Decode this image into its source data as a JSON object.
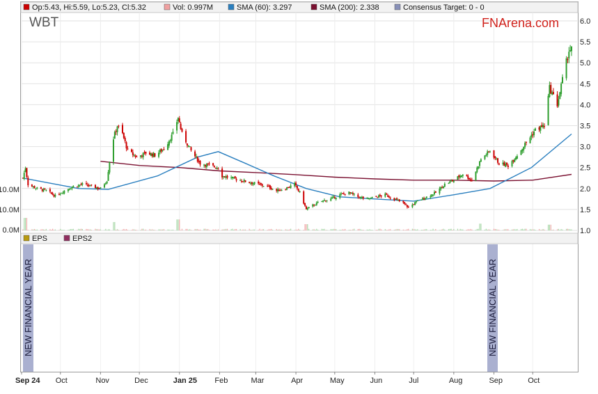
{
  "ticker": "WBT",
  "brand": "FNArena.com",
  "legend": [
    {
      "label": "Op:5.43, Hi:5.59, Lo:5.23, Cl:5.32",
      "color": "#cc0000"
    },
    {
      "label": "Vol: 0.997M",
      "color": "#f0a0a0"
    },
    {
      "label": "SMA (60): 3.297",
      "color": "#2a7fbf"
    },
    {
      "label": "SMA (200): 2.338",
      "color": "#7a1030"
    },
    {
      "label": "Consensus Target: 0 - 0",
      "color": "#8890b8"
    }
  ],
  "lower_legend": [
    {
      "label": "EPS",
      "color": "#b89a10"
    },
    {
      "label": "EPS2",
      "color": "#903060"
    }
  ],
  "y_ticks": [
    "6.0",
    "5.5",
    "5.0",
    "4.5",
    "4.0",
    "3.5",
    "3.0",
    "2.5",
    "2.0",
    "1.5",
    "1.0"
  ],
  "volume_ticks": [
    "10.0M",
    "10.0M",
    "0.0M"
  ],
  "months": [
    "Sep 24",
    "Oct",
    "Nov",
    "Dec",
    "Jan 25",
    "Feb",
    "Mar",
    "Apr",
    "May",
    "Jun",
    "Jul",
    "Aug",
    "Sep",
    "Oct"
  ],
  "financial_year_label": "NEW FINANCIAL YEAR",
  "colors": {
    "up": "#2e9e2e",
    "down": "#cc0000",
    "sma60": "#2a7fbf",
    "sma200": "#7a1030",
    "fy_band": "#aab0d0",
    "grid": "#e2e2e2"
  },
  "chart_data": {
    "type": "candlestick",
    "title": "WBT",
    "ylim": [
      1.0,
      6.0
    ],
    "y_scale": "linear",
    "grid": true,
    "legend_placement": "top",
    "price_points": [
      [
        "2024-09-02",
        2.25
      ],
      [
        "2024-09-04",
        2.5
      ],
      [
        "2024-09-06",
        2.1
      ],
      [
        "2024-09-13",
        2.0
      ],
      [
        "2024-09-20",
        1.95
      ],
      [
        "2024-09-27",
        1.82
      ],
      [
        "2024-10-04",
        1.95
      ],
      [
        "2024-10-11",
        2.05
      ],
      [
        "2024-10-18",
        2.1
      ],
      [
        "2024-10-25",
        2.05
      ],
      [
        "2024-11-01",
        2.0
      ],
      [
        "2024-11-06",
        2.2
      ],
      [
        "2024-11-08",
        2.65
      ],
      [
        "2024-11-11",
        3.2
      ],
      [
        "2024-11-14",
        3.5
      ],
      [
        "2024-11-18",
        3.3
      ],
      [
        "2024-11-22",
        2.9
      ],
      [
        "2024-11-29",
        2.75
      ],
      [
        "2024-12-06",
        2.85
      ],
      [
        "2024-12-13",
        2.8
      ],
      [
        "2024-12-20",
        2.95
      ],
      [
        "2024-12-27",
        3.3
      ],
      [
        "2024-12-31",
        3.7
      ],
      [
        "2025-01-03",
        3.3
      ],
      [
        "2025-01-10",
        2.9
      ],
      [
        "2025-01-17",
        2.6
      ],
      [
        "2025-01-24",
        2.55
      ],
      [
        "2025-01-31",
        2.5
      ],
      [
        "2025-02-03",
        2.3
      ],
      [
        "2025-02-10",
        2.25
      ],
      [
        "2025-02-17",
        2.2
      ],
      [
        "2025-02-24",
        2.15
      ],
      [
        "2025-03-03",
        2.1
      ],
      [
        "2025-03-10",
        2.05
      ],
      [
        "2025-03-17",
        1.95
      ],
      [
        "2025-03-24",
        2.0
      ],
      [
        "2025-03-31",
        2.1
      ],
      [
        "2025-04-04",
        1.9
      ],
      [
        "2025-04-09",
        1.5
      ],
      [
        "2025-04-14",
        1.6
      ],
      [
        "2025-04-21",
        1.7
      ],
      [
        "2025-04-28",
        1.75
      ],
      [
        "2025-05-05",
        1.85
      ],
      [
        "2025-05-12",
        1.9
      ],
      [
        "2025-05-19",
        1.8
      ],
      [
        "2025-05-26",
        1.75
      ],
      [
        "2025-06-02",
        1.8
      ],
      [
        "2025-06-09",
        1.85
      ],
      [
        "2025-06-16",
        1.75
      ],
      [
        "2025-06-23",
        1.65
      ],
      [
        "2025-06-27",
        1.55
      ],
      [
        "2025-07-04",
        1.7
      ],
      [
        "2025-07-11",
        1.8
      ],
      [
        "2025-07-18",
        1.9
      ],
      [
        "2025-07-25",
        2.1
      ],
      [
        "2025-08-01",
        2.2
      ],
      [
        "2025-08-08",
        2.35
      ],
      [
        "2025-08-15",
        2.2
      ],
      [
        "2025-08-22",
        2.7
      ],
      [
        "2025-08-29",
        2.9
      ],
      [
        "2025-09-05",
        2.6
      ],
      [
        "2025-09-12",
        2.55
      ],
      [
        "2025-09-19",
        2.8
      ],
      [
        "2025-09-26",
        3.1
      ],
      [
        "2025-10-03",
        3.4
      ],
      [
        "2025-10-10",
        3.5
      ],
      [
        "2025-10-14",
        4.4
      ],
      [
        "2025-10-20",
        4.0
      ],
      [
        "2025-10-24",
        4.6
      ],
      [
        "2025-10-29",
        5.3
      ],
      [
        "2025-10-31",
        5.32
      ]
    ],
    "sma60": [
      [
        "2024-09-02",
        2.25
      ],
      [
        "2024-10-15",
        2.0
      ],
      [
        "2024-11-07",
        1.98
      ],
      [
        "2024-12-15",
        2.3
      ],
      [
        "2025-01-15",
        2.75
      ],
      [
        "2025-01-31",
        2.88
      ],
      [
        "2025-02-21",
        2.6
      ],
      [
        "2025-03-15",
        2.3
      ],
      [
        "2025-04-09",
        2.0
      ],
      [
        "2025-05-05",
        1.8
      ],
      [
        "2025-06-02",
        1.75
      ],
      [
        "2025-07-01",
        1.7
      ],
      [
        "2025-08-01",
        1.85
      ],
      [
        "2025-08-29",
        2.0
      ],
      [
        "2025-09-30",
        2.5
      ],
      [
        "2025-10-31",
        3.3
      ]
    ],
    "sma200": [
      [
        "2024-11-01",
        2.65
      ],
      [
        "2024-12-01",
        2.55
      ],
      [
        "2025-01-01",
        2.5
      ],
      [
        "2025-02-01",
        2.42
      ],
      [
        "2025-03-01",
        2.38
      ],
      [
        "2025-04-01",
        2.33
      ],
      [
        "2025-05-01",
        2.27
      ],
      [
        "2025-06-01",
        2.23
      ],
      [
        "2025-07-01",
        2.2
      ],
      [
        "2025-08-01",
        2.2
      ],
      [
        "2025-09-01",
        2.18
      ],
      [
        "2025-10-01",
        2.2
      ],
      [
        "2025-10-31",
        2.338
      ]
    ],
    "volume_m": [
      [
        "2024-09-04",
        12.0
      ],
      [
        "2024-11-11",
        8.0
      ],
      [
        "2024-12-31",
        10.5
      ],
      [
        "2025-04-09",
        6.0
      ],
      [
        "2025-08-22",
        6.5
      ],
      [
        "2025-10-14",
        5.5
      ],
      [
        "2025-10-31",
        0.997
      ]
    ],
    "financial_year_markers": [
      "2024-09-01",
      "2025-09-01"
    ]
  }
}
